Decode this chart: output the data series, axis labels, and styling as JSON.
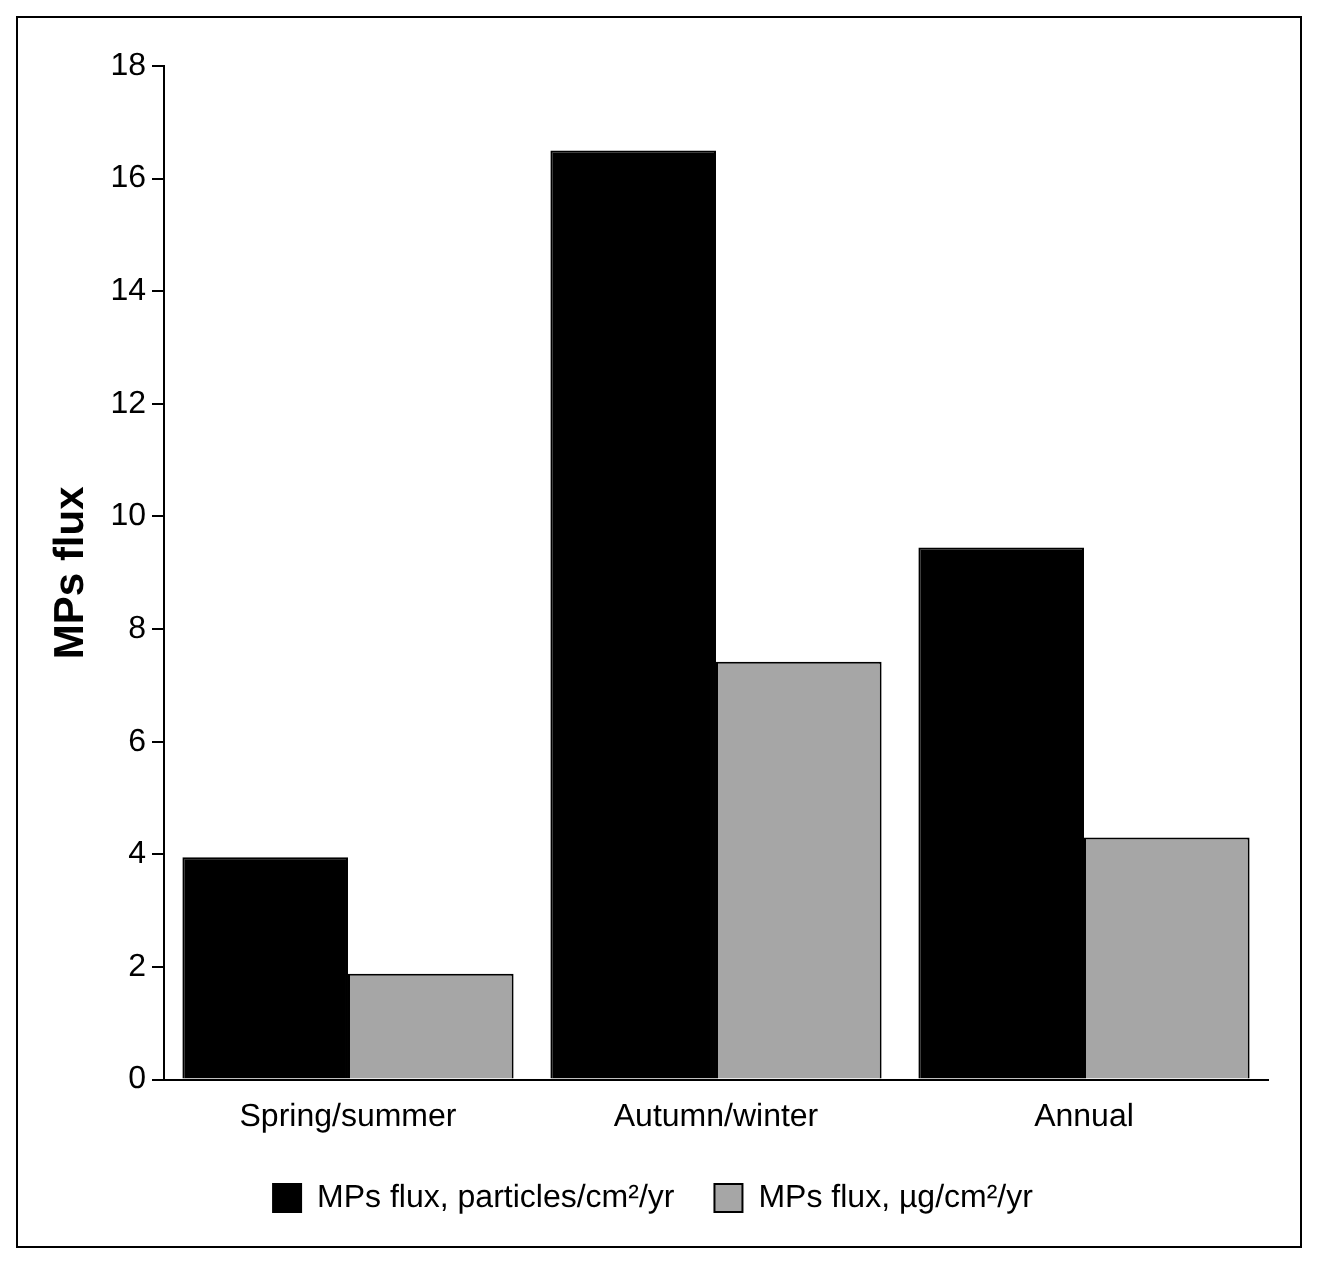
{
  "chart_data": {
    "type": "bar",
    "ylabel": "MPs flux",
    "categories": [
      "Spring/summer",
      "Autumn/winter",
      "Annual"
    ],
    "series": [
      {
        "name": "MPs flux, particles/cm²/yr",
        "color": "#000000",
        "values": [
          3.95,
          16.5,
          9.45
        ]
      },
      {
        "name": "MPs flux, µg/cm²/yr",
        "color": "#a6a6a6",
        "values": [
          1.88,
          7.42,
          4.3
        ]
      }
    ],
    "ylim": [
      0,
      18
    ],
    "yticks": [
      0,
      2,
      4,
      6,
      8,
      10,
      12,
      14,
      16,
      18
    ],
    "grid": false,
    "legend": "bottom"
  }
}
